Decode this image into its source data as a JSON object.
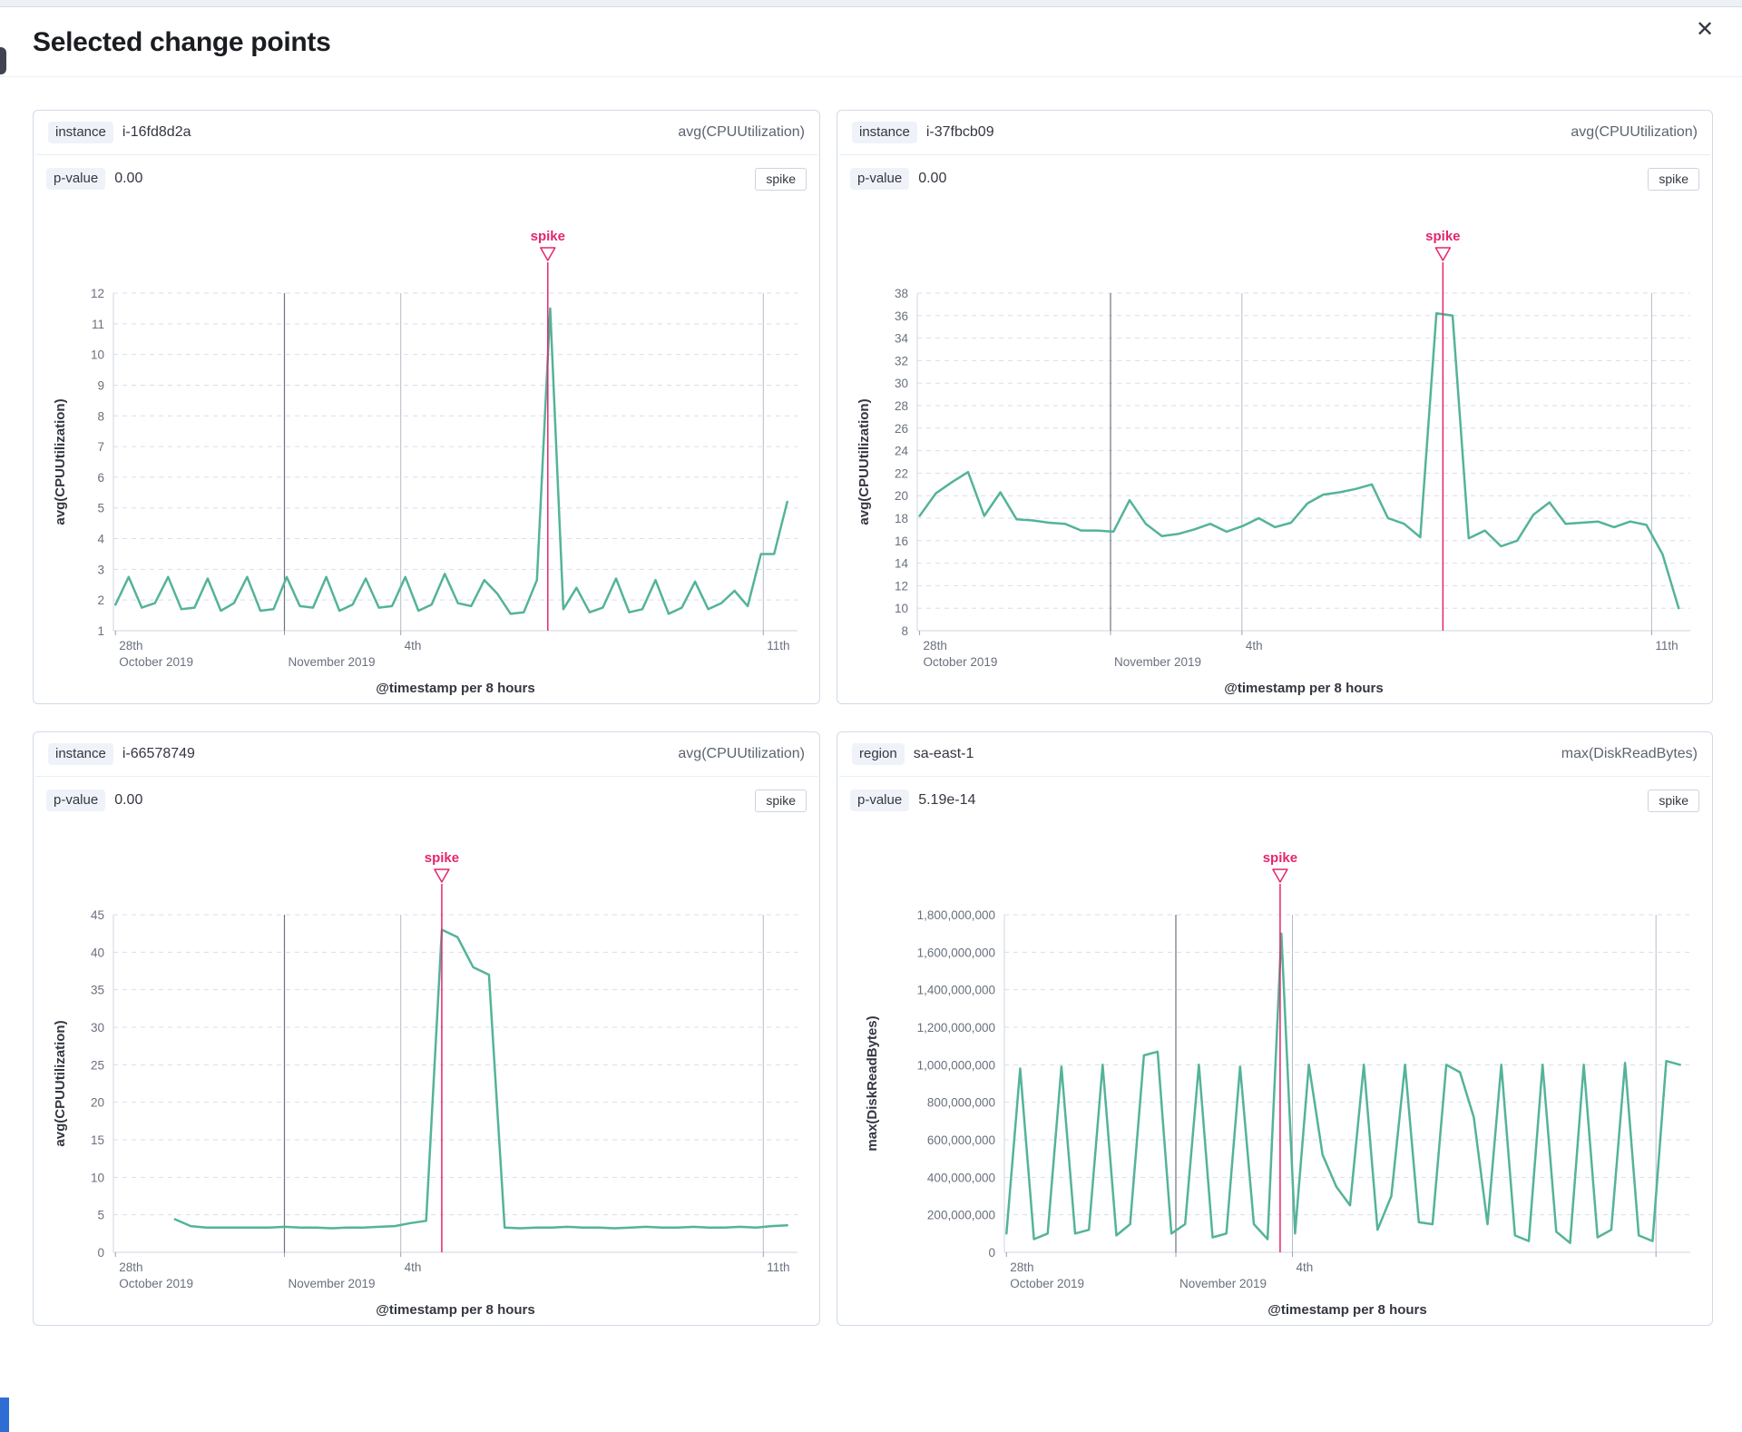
{
  "modal": {
    "title": "Selected change points",
    "close_icon": "✕"
  },
  "colors": {
    "line": "#54b399",
    "annotation": "#e5256e"
  },
  "panels": [
    {
      "split_field": "instance",
      "split_value": "i-16fd8d2a",
      "metric": "avg(CPUUtilization)",
      "p_label": "p-value",
      "p_value": "0.00",
      "change_type": "spike",
      "chart_data": {
        "type": "line",
        "title": "",
        "ylabel": "avg(CPUUtilization)",
        "xlabel": "@timestamp per 8 hours",
        "ylim": [
          1,
          12
        ],
        "yticks": [
          1,
          2,
          3,
          4,
          5,
          6,
          7,
          8,
          9,
          10,
          11,
          12
        ],
        "ytick_labels": [
          "1",
          "2",
          "3",
          "4",
          "5",
          "6",
          "7",
          "8",
          "9",
          "10",
          "11",
          "12"
        ],
        "xticks": [
          {
            "pos": 0.003,
            "line1": "28th",
            "line2": "October 2019",
            "rule": "none"
          },
          {
            "pos": 0.25,
            "line1": "",
            "line2": "November 2019",
            "rule": "strong"
          },
          {
            "pos": 0.42,
            "line1": "4th",
            "line2": "",
            "rule": "light"
          },
          {
            "pos": 0.95,
            "line1": "11th",
            "line2": "",
            "rule": "light"
          }
        ],
        "annotation": {
          "label": "spike",
          "pos": 0.635
        },
        "series": {
          "x_start": 0.003,
          "x_end": 0.985,
          "values": [
            1.85,
            2.75,
            1.75,
            1.9,
            2.75,
            1.7,
            1.75,
            2.7,
            1.65,
            1.9,
            2.75,
            1.65,
            1.7,
            2.75,
            1.8,
            1.75,
            2.75,
            1.65,
            1.85,
            2.7,
            1.75,
            1.8,
            2.75,
            1.65,
            1.85,
            2.85,
            1.9,
            1.8,
            2.65,
            2.2,
            1.55,
            1.6,
            2.65,
            11.5,
            1.7,
            2.4,
            1.6,
            1.75,
            2.7,
            1.6,
            1.7,
            2.65,
            1.55,
            1.75,
            2.6,
            1.7,
            1.9,
            2.3,
            1.8,
            3.5,
            3.5,
            5.2
          ]
        }
      }
    },
    {
      "split_field": "instance",
      "split_value": "i-37fbcb09",
      "metric": "avg(CPUUtilization)",
      "p_label": "p-value",
      "p_value": "0.00",
      "change_type": "spike",
      "chart_data": {
        "type": "line",
        "title": "",
        "ylabel": "avg(CPUUtilization)",
        "xlabel": "@timestamp per 8 hours",
        "ylim": [
          8,
          38
        ],
        "yticks": [
          8,
          10,
          12,
          14,
          16,
          18,
          20,
          22,
          24,
          26,
          28,
          30,
          32,
          34,
          36,
          38
        ],
        "ytick_labels": [
          "8",
          "10",
          "12",
          "14",
          "16",
          "18",
          "20",
          "22",
          "24",
          "26",
          "28",
          "30",
          "32",
          "34",
          "36",
          "38"
        ],
        "xticks": [
          {
            "pos": 0.003,
            "line1": "28th",
            "line2": "October 2019",
            "rule": "none"
          },
          {
            "pos": 0.25,
            "line1": "",
            "line2": "November 2019",
            "rule": "strong"
          },
          {
            "pos": 0.42,
            "line1": "4th",
            "line2": "",
            "rule": "light"
          },
          {
            "pos": 0.95,
            "line1": "11th",
            "line2": "",
            "rule": "light"
          }
        ],
        "annotation": {
          "label": "spike",
          "pos": 0.68
        },
        "series": {
          "x_start": 0.003,
          "x_end": 0.985,
          "values": [
            18.2,
            20.2,
            21.2,
            22.1,
            18.2,
            20.3,
            17.9,
            17.8,
            17.6,
            17.5,
            16.9,
            16.9,
            16.8,
            19.6,
            17.5,
            16.4,
            16.6,
            17.0,
            17.5,
            16.8,
            17.3,
            18.0,
            17.2,
            17.6,
            19.3,
            20.1,
            20.3,
            20.6,
            21.0,
            18.0,
            17.5,
            16.3,
            36.2,
            36.0,
            16.2,
            16.9,
            15.5,
            16.0,
            18.3,
            19.4,
            17.5,
            17.6,
            17.7,
            17.2,
            17.7,
            17.4,
            14.8,
            10.0
          ]
        }
      }
    },
    {
      "split_field": "instance",
      "split_value": "i-66578749",
      "metric": "avg(CPUUtilization)",
      "p_label": "p-value",
      "p_value": "0.00",
      "change_type": "spike",
      "chart_data": {
        "type": "line",
        "title": "",
        "ylabel": "avg(CPUUtilization)",
        "xlabel": "@timestamp per 8 hours",
        "ylim": [
          0,
          45
        ],
        "yticks": [
          0,
          5,
          10,
          15,
          20,
          25,
          30,
          35,
          40,
          45
        ],
        "ytick_labels": [
          "0",
          "5",
          "10",
          "15",
          "20",
          "25",
          "30",
          "35",
          "40",
          "45"
        ],
        "xticks": [
          {
            "pos": 0.003,
            "line1": "28th",
            "line2": "October 2019",
            "rule": "none"
          },
          {
            "pos": 0.25,
            "line1": "",
            "line2": "November 2019",
            "rule": "strong"
          },
          {
            "pos": 0.42,
            "line1": "4th",
            "line2": "",
            "rule": "light"
          },
          {
            "pos": 0.95,
            "line1": "11th",
            "line2": "",
            "rule": "light"
          }
        ],
        "annotation": {
          "label": "spike",
          "pos": 0.48
        },
        "series": {
          "x_start": 0.09,
          "x_end": 0.985,
          "values": [
            4.4,
            3.5,
            3.3,
            3.3,
            3.3,
            3.3,
            3.3,
            3.4,
            3.3,
            3.3,
            3.2,
            3.3,
            3.3,
            3.4,
            3.5,
            3.9,
            4.2,
            43.0,
            42.0,
            38.0,
            37.0,
            3.3,
            3.2,
            3.3,
            3.3,
            3.4,
            3.3,
            3.3,
            3.2,
            3.3,
            3.4,
            3.3,
            3.3,
            3.4,
            3.3,
            3.3,
            3.4,
            3.3,
            3.5,
            3.6
          ]
        }
      }
    },
    {
      "split_field": "region",
      "split_value": "sa-east-1",
      "metric": "max(DiskReadBytes)",
      "p_label": "p-value",
      "p_value": "5.19e-14",
      "change_type": "spike",
      "chart_data": {
        "type": "line",
        "title": "",
        "ylabel": "max(DiskReadBytes)",
        "xlabel": "@timestamp per 8 hours",
        "ylim": [
          0,
          1800000000.0
        ],
        "yticks": [
          0,
          200000000.0,
          400000000.0,
          600000000.0,
          800000000.0,
          1000000000.0,
          1200000000.0,
          1400000000.0,
          1600000000.0,
          1800000000.0
        ],
        "ytick_labels": [
          "0",
          "200,000,000",
          "400,000,000",
          "600,000,000",
          "800,000,000",
          "1,000,000,000",
          "1,200,000,000",
          "1,400,000,000",
          "1,600,000,000",
          "1,800,000,000"
        ],
        "xticks": [
          {
            "pos": 0.003,
            "line1": "28th",
            "line2": "October 2019",
            "rule": "none"
          },
          {
            "pos": 0.25,
            "line1": "",
            "line2": "November 2019",
            "rule": "strong"
          },
          {
            "pos": 0.42,
            "line1": "4th",
            "line2": "",
            "rule": "light"
          },
          {
            "pos": 0.95,
            "line1": "",
            "line2": "",
            "rule": "light"
          }
        ],
        "annotation": {
          "label": "spike",
          "pos": 0.402
        },
        "series": {
          "x_start": 0.003,
          "x_end": 0.985,
          "values": [
            100000000.0,
            980000000.0,
            70000000.0,
            100000000.0,
            990000000.0,
            100000000.0,
            120000000.0,
            1000000000.0,
            90000000.0,
            150000000.0,
            1050000000.0,
            1070000000.0,
            100000000.0,
            150000000.0,
            1000000000.0,
            80000000.0,
            100000000.0,
            990000000.0,
            150000000.0,
            70000000.0,
            1700000000.0,
            100000000.0,
            1000000000.0,
            520000000.0,
            350000000.0,
            250000000.0,
            1000000000.0,
            120000000.0,
            300000000.0,
            1000000000.0,
            160000000.0,
            150000000.0,
            1000000000.0,
            960000000.0,
            720000000.0,
            150000000.0,
            1000000000.0,
            90000000.0,
            60000000.0,
            1000000000.0,
            110000000.0,
            50000000.0,
            1000000000.0,
            80000000.0,
            120000000.0,
            1010000000.0,
            90000000.0,
            60000000.0,
            1020000000.0,
            1000000000.0
          ]
        }
      }
    }
  ]
}
